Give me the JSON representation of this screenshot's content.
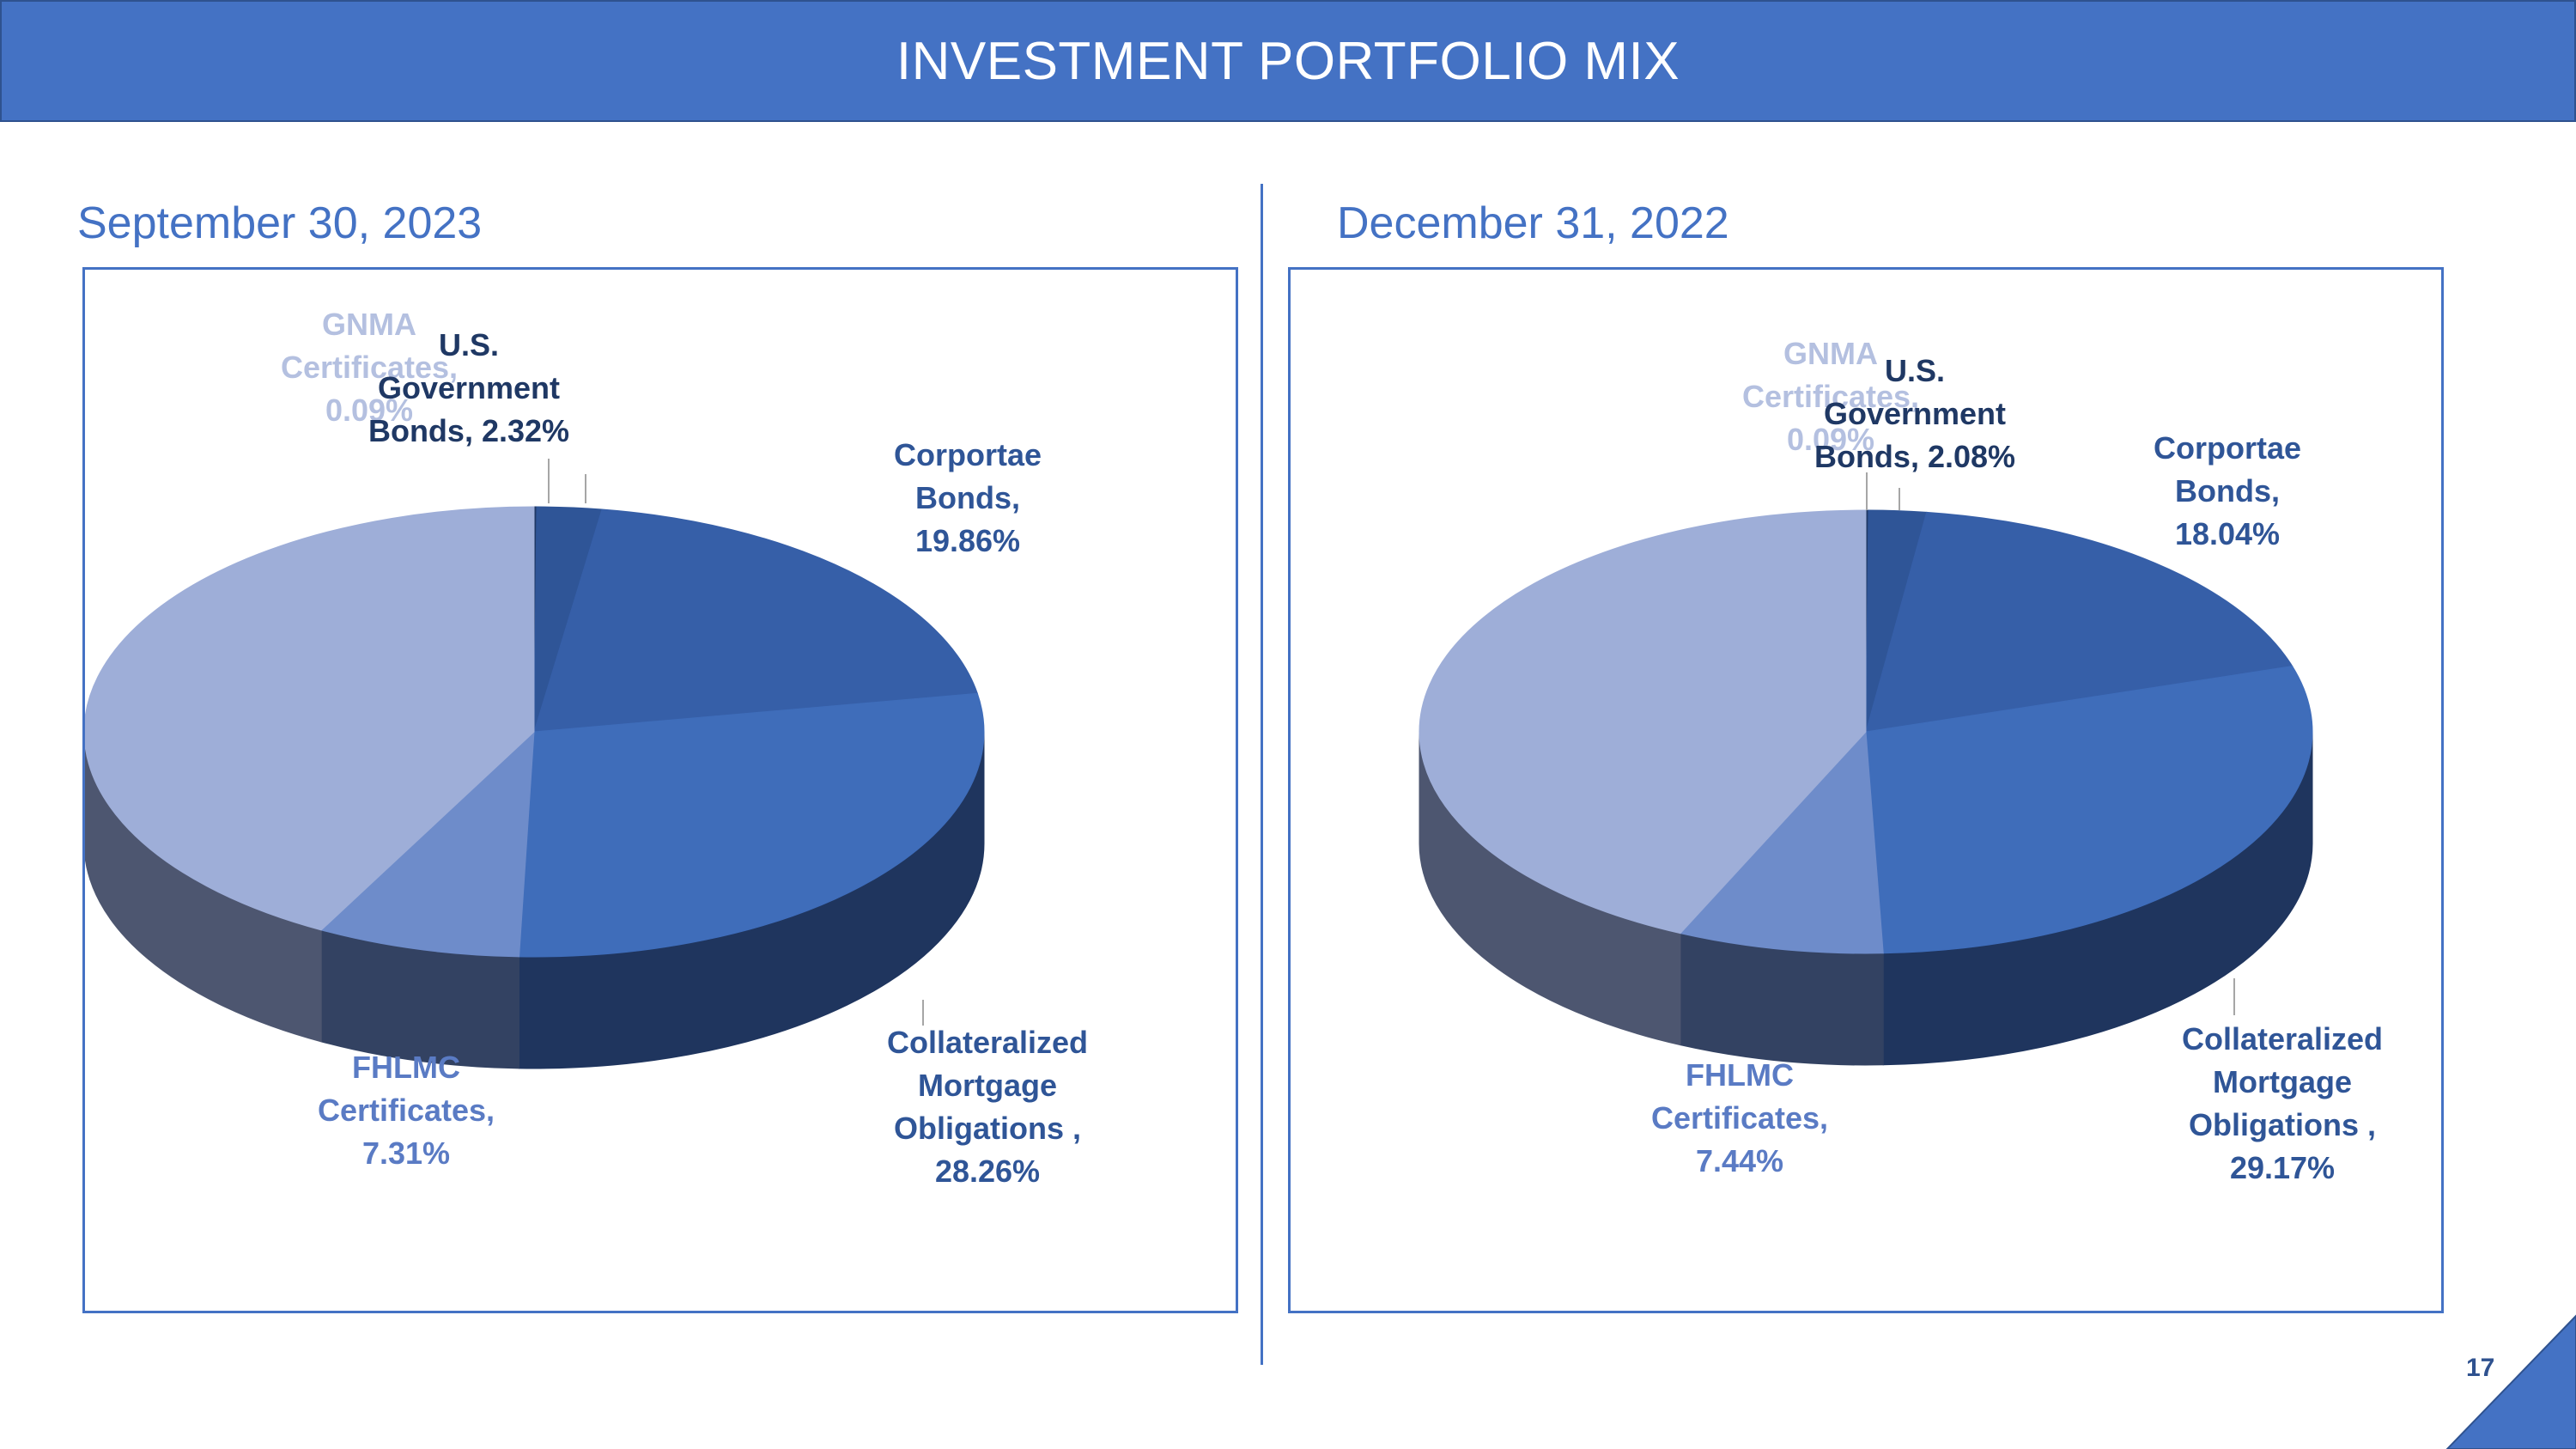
{
  "header": {
    "title": "INVESTMENT PORTFOLIO MIX"
  },
  "page_number": "17",
  "panels": [
    {
      "heading": "September 30, 2023"
    },
    {
      "heading": "December 31, 2022"
    }
  ],
  "colors": {
    "header_bg": "#4472c4",
    "accent": "#4472c4",
    "slice_gnma": "#1f3864",
    "slice_usgov": "#2f5597",
    "slice_corporate": "#365fa8",
    "slice_cmo": "#3f6dba",
    "slice_fhlmc": "#6e8cca",
    "slice_other": "#9eaed8"
  },
  "chart_data": [
    {
      "type": "pie",
      "title": "September 30, 2023",
      "slices": [
        {
          "label_lines": [
            "GNMA",
            "Certificates,",
            "0.09%"
          ],
          "value": 0.09
        },
        {
          "label_lines": [
            "U.S.",
            "Government",
            "Bonds, 2.32%"
          ],
          "value": 2.32
        },
        {
          "label_lines": [
            "Corportae",
            "Bonds,",
            "19.86%"
          ],
          "value": 19.86
        },
        {
          "label_lines": [
            "Collateralized",
            "Mortgage",
            "Obligations ,",
            "28.26%"
          ],
          "value": 28.26
        },
        {
          "label_lines": [
            "FHLMC",
            "Certificates,",
            "7.31%"
          ],
          "value": 7.31
        },
        {
          "label_lines": [],
          "value": 42.16
        }
      ]
    },
    {
      "type": "pie",
      "title": "December 31, 2022",
      "slices": [
        {
          "label_lines": [
            "GNMA",
            "Certificates,",
            "0.09%"
          ],
          "value": 0.09
        },
        {
          "label_lines": [
            "U.S.",
            "Government",
            "Bonds, 2.08%"
          ],
          "value": 2.08
        },
        {
          "label_lines": [
            "Corportae",
            "Bonds,",
            "18.04%"
          ],
          "value": 18.04
        },
        {
          "label_lines": [
            "Collateralized",
            "Mortgage",
            "Obligations ,",
            "29.17%"
          ],
          "value": 29.17
        },
        {
          "label_lines": [
            "FHLMC",
            "Certificates,",
            "7.44%"
          ],
          "value": 7.44
        },
        {
          "label_lines": [],
          "value": 43.18
        }
      ]
    }
  ]
}
